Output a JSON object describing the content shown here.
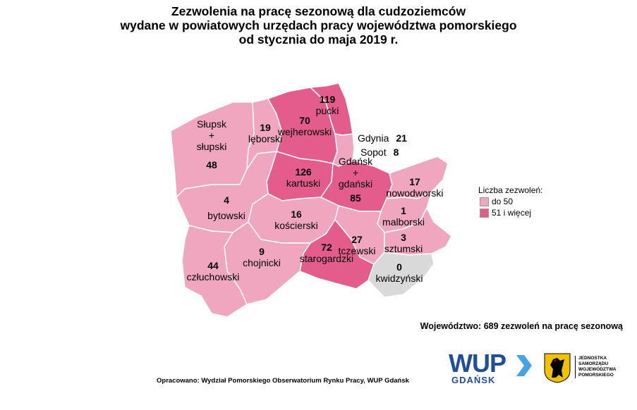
{
  "title": {
    "line1": "Zezwolenia na pracę sezonową dla cudzoziemców",
    "line2": "wydane w powiatowych urzędach pracy województwa pomorskiego",
    "line3": "od stycznia do maja 2019 r."
  },
  "colors": {
    "low": "#f1a6c0",
    "high": "#e35c8c",
    "nodata": "#d9d9d9",
    "border": "#ffffff"
  },
  "districts": [
    {
      "id": "slupski",
      "name_lines": [
        "Słupsk",
        "+",
        "słupski"
      ],
      "value": "48",
      "class": "low"
    },
    {
      "id": "leborski",
      "name_lines": [
        "lęborski"
      ],
      "value": "19",
      "class": "low"
    },
    {
      "id": "wejherowski",
      "name_lines": [
        "wejherowski"
      ],
      "value": "70",
      "class": "high"
    },
    {
      "id": "pucki",
      "name_lines": [
        "pucki"
      ],
      "value": "119",
      "class": "high"
    },
    {
      "id": "kartuski",
      "name_lines": [
        "kartuski"
      ],
      "value": "126",
      "class": "high"
    },
    {
      "id": "gdanski",
      "name_lines": [
        "Gdańsk",
        "+",
        "gdański"
      ],
      "value": "85",
      "class": "high"
    },
    {
      "id": "nowodworski",
      "name_lines": [
        "nowodworski"
      ],
      "value": "17",
      "class": "low"
    },
    {
      "id": "bytowski",
      "name_lines": [
        "bytowski"
      ],
      "value": "4",
      "class": "low"
    },
    {
      "id": "koscierski",
      "name_lines": [
        "kościerski"
      ],
      "value": "16",
      "class": "low"
    },
    {
      "id": "malborski",
      "name_lines": [
        "malborski"
      ],
      "value": "1",
      "class": "low"
    },
    {
      "id": "sztumski",
      "name_lines": [
        "sztumski"
      ],
      "value": "3",
      "class": "low"
    },
    {
      "id": "tczewski",
      "name_lines": [
        "tczewski"
      ],
      "value": "27",
      "class": "low"
    },
    {
      "id": "starogardzki",
      "name_lines": [
        "starogardzki"
      ],
      "value": "72",
      "class": "high"
    },
    {
      "id": "chojnicki",
      "name_lines": [
        "chojnicki"
      ],
      "value": "9",
      "class": "low"
    },
    {
      "id": "czluchowski",
      "name_lines": [
        "człuchowski"
      ],
      "value": "44",
      "class": "low"
    },
    {
      "id": "kwidzynski",
      "name_lines": [
        "kwidzyński"
      ],
      "value": "0",
      "class": "nodata"
    }
  ],
  "cities": [
    {
      "id": "gdynia",
      "name": "Gdynia",
      "value": "21"
    },
    {
      "id": "sopot",
      "name": "Sopot",
      "value": "8"
    }
  ],
  "legend": {
    "title": "Liczba zezwoleń:",
    "items": [
      {
        "label": "do 50",
        "class": "low"
      },
      {
        "label": "51 i więcej",
        "class": "high"
      }
    ]
  },
  "total": "Województwo: 689 zezwoleń na pracę sezonową",
  "source": "Opracowano: Wydział Pomorskiego Obserwatorium Rynku Pracy, WUP Gdańsk",
  "logo_wup": {
    "main": "WUP",
    "sub": "GDAŃSK"
  },
  "logo_js": {
    "lines": [
      "JEDNOSTKA",
      "SAMORZĄDU",
      "WOJEWÓDZTWA",
      "POMORSKIEGO"
    ]
  }
}
